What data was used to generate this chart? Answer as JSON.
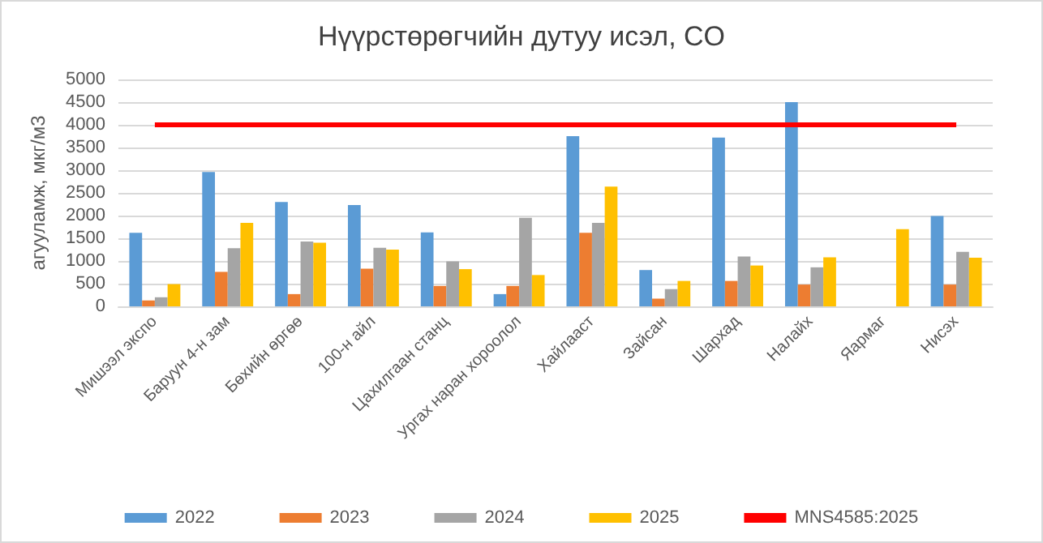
{
  "chart_data": {
    "type": "bar",
    "title": "Нүүрстөрөгчийн дутуу исэл, CO",
    "ylabel": "агууламж, мкг/м3",
    "categories": [
      "Мишээл экспо",
      "Баруун 4-н зам",
      "Бөхийн өргөө",
      "100-н айл",
      "Цахилгаан станц",
      "Ургах наран хороолол",
      "Хайлааст",
      "Зайсан",
      "Шархад",
      "Налайх",
      "Яармаг",
      "Нисэх"
    ],
    "series": [
      {
        "name": "2022",
        "color": "#5b9bd5",
        "values": [
          1620,
          2960,
          2300,
          2230,
          1630,
          270,
          3750,
          800,
          3720,
          4500,
          null,
          1990
        ]
      },
      {
        "name": "2023",
        "color": "#ed7d31",
        "values": [
          130,
          760,
          270,
          830,
          450,
          450,
          1620,
          170,
          560,
          480,
          null,
          480
        ]
      },
      {
        "name": "2024",
        "color": "#a5a5a5",
        "values": [
          200,
          1280,
          1430,
          1290,
          990,
          1950,
          1840,
          380,
          1100,
          860,
          null,
          1200
        ]
      },
      {
        "name": "2025",
        "color": "#ffc000",
        "values": [
          490,
          1840,
          1400,
          1250,
          820,
          690,
          2640,
          560,
          900,
          1080,
          1700,
          1070
        ]
      },
      {
        "name": "MNS4585:2025",
        "type": "line",
        "color": "#ff0000",
        "values": [
          4000,
          4000,
          4000,
          4000,
          4000,
          4000,
          4000,
          4000,
          4000,
          4000,
          4000,
          4000
        ]
      }
    ],
    "ylim": [
      0,
      5000
    ],
    "yticks": [
      0,
      500,
      1000,
      1500,
      2000,
      2500,
      3000,
      3500,
      4000,
      4500,
      5000
    ],
    "grid": "y",
    "legend": "bottom",
    "marker": "none"
  }
}
